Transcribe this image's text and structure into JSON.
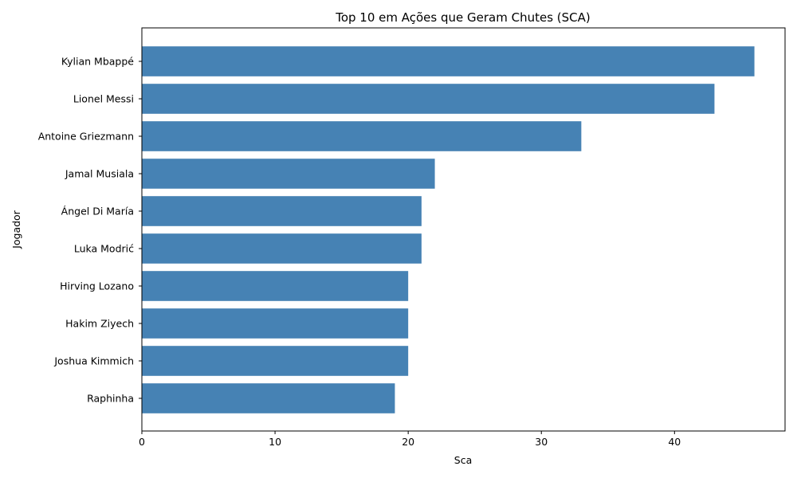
{
  "chart_data": {
    "type": "bar",
    "orientation": "horizontal",
    "title": "Top 10 em Ações que Geram Chutes (SCA)",
    "xlabel": "Sca",
    "ylabel": "Jogador",
    "categories": [
      "Kylian Mbappé",
      "Lionel Messi",
      "Antoine Griezmann",
      "Jamal Musiala",
      "Ángel Di María",
      "Luka Modrić",
      "Hirving Lozano",
      "Hakim Ziyech",
      "Joshua Kimmich",
      "Raphinha"
    ],
    "values": [
      46,
      43,
      33,
      22,
      21,
      21,
      20,
      20,
      20,
      19
    ],
    "xlim": [
      0,
      48.3
    ],
    "xticks": [
      0,
      10,
      20,
      30,
      40
    ],
    "grid": false,
    "bar_color": "#4682b4"
  }
}
